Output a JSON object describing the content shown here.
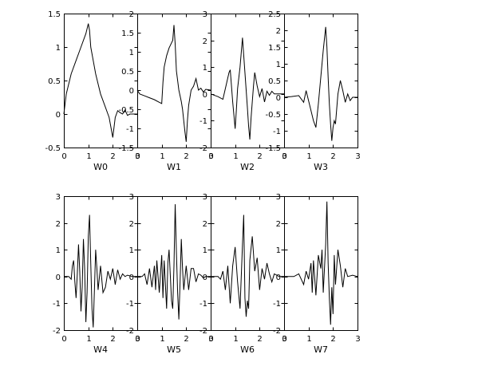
{
  "figure": {
    "background": "#ffffff",
    "line_color": "#000000"
  },
  "chart_data": [
    {
      "type": "line",
      "xlabel": "W0",
      "xlim": [
        0,
        3
      ],
      "ylim": [
        -0.5,
        1.5
      ],
      "xticks": [
        0,
        1,
        2,
        3
      ],
      "yticks": [
        -0.5,
        0,
        0.5,
        1,
        1.5
      ],
      "ytick_labels": [
        "-0.5",
        "0",
        "0.5",
        "1",
        "1.5"
      ],
      "grid": false,
      "series": [
        {
          "x": [
            0,
            0.05,
            0.1,
            0.2,
            0.3,
            0.5,
            0.7,
            0.9,
            1.0,
            1.05,
            1.1,
            1.2,
            1.3,
            1.4,
            1.5,
            1.6,
            1.7,
            1.8,
            1.85,
            1.9,
            1.95,
            2.0,
            2.05,
            2.1,
            2.2,
            2.3,
            2.4,
            2.5,
            2.6,
            2.7,
            3.0
          ],
          "y": [
            0,
            0.15,
            0.3,
            0.45,
            0.6,
            0.8,
            1.0,
            1.2,
            1.35,
            1.25,
            1.0,
            0.8,
            0.6,
            0.45,
            0.3,
            0.2,
            0.1,
            0.0,
            -0.05,
            -0.15,
            -0.25,
            -0.35,
            -0.2,
            -0.05,
            0.05,
            0.02,
            0.0,
            0.06,
            -0.02,
            0.0,
            0.0
          ]
        }
      ]
    },
    {
      "type": "line",
      "xlabel": "W1",
      "xlim": [
        0,
        3
      ],
      "ylim": [
        -1.5,
        2
      ],
      "xticks": [
        0,
        1,
        2,
        3
      ],
      "yticks": [
        -1.5,
        -1,
        -0.5,
        0,
        0.5,
        1,
        1.5,
        2
      ],
      "ytick_labels": [
        "-1.5",
        "-1",
        "-0.5",
        "0",
        "0.5",
        "1",
        "1.5",
        "2"
      ],
      "grid": false,
      "series": [
        {
          "x": [
            0,
            0.1,
            0.3,
            0.5,
            0.7,
            0.9,
            1.0,
            1.05,
            1.1,
            1.2,
            1.3,
            1.45,
            1.5,
            1.55,
            1.6,
            1.7,
            1.8,
            1.85,
            1.9,
            1.95,
            2.0,
            2.05,
            2.1,
            2.2,
            2.3,
            2.4,
            2.5,
            2.6,
            2.7,
            2.8,
            3.0
          ],
          "y": [
            0,
            -0.1,
            -0.15,
            -0.2,
            -0.25,
            -0.32,
            -0.35,
            0.2,
            0.6,
            0.9,
            1.1,
            1.3,
            1.7,
            1.2,
            0.5,
            0.0,
            -0.3,
            -0.5,
            -0.8,
            -1.1,
            -1.35,
            -0.8,
            -0.4,
            0.0,
            0.1,
            0.3,
            0.0,
            0.05,
            -0.05,
            0.02,
            0.0
          ]
        }
      ]
    },
    {
      "type": "line",
      "xlabel": "W2",
      "xlim": [
        0,
        3
      ],
      "ylim": [
        -2,
        3
      ],
      "xticks": [
        0,
        1,
        2,
        3
      ],
      "yticks": [
        -2,
        -1,
        0,
        1,
        2,
        3
      ],
      "ytick_labels": [
        "-2",
        "-1",
        "0",
        "1",
        "2",
        "3"
      ],
      "grid": false,
      "series": [
        {
          "x": [
            0,
            0.3,
            0.5,
            0.6,
            0.7,
            0.75,
            0.8,
            0.9,
            1.0,
            1.05,
            1.1,
            1.2,
            1.3,
            1.4,
            1.5,
            1.55,
            1.6,
            1.65,
            1.7,
            1.75,
            1.8,
            1.9,
            2.0,
            2.1,
            2.2,
            2.3,
            2.4,
            2.5,
            2.6,
            2.7,
            3.0
          ],
          "y": [
            0,
            -0.1,
            -0.2,
            0.2,
            0.6,
            0.8,
            0.9,
            -0.3,
            -1.3,
            -0.6,
            0.2,
            1.0,
            2.1,
            0.8,
            -0.5,
            -1.2,
            -1.7,
            -0.9,
            -0.3,
            0.3,
            0.8,
            0.3,
            -0.1,
            0.2,
            -0.3,
            0.1,
            -0.05,
            0.1,
            0.0,
            0.0,
            0.0
          ]
        }
      ]
    },
    {
      "type": "line",
      "xlabel": "W3",
      "xlim": [
        0,
        3
      ],
      "ylim": [
        -1.5,
        2.5
      ],
      "xticks": [
        0,
        1,
        2,
        3
      ],
      "yticks": [
        -1.5,
        -1,
        -0.5,
        0,
        0.5,
        1,
        1.5,
        2,
        2.5
      ],
      "ytick_labels": [
        "-1.5",
        "-1",
        "-0.5",
        "0",
        "0.5",
        "1",
        "1.5",
        "2",
        "2.5"
      ],
      "grid": false,
      "series": [
        {
          "x": [
            0,
            0.3,
            0.6,
            0.8,
            0.9,
            1.0,
            1.1,
            1.2,
            1.3,
            1.4,
            1.5,
            1.6,
            1.7,
            1.75,
            1.8,
            1.85,
            1.9,
            1.95,
            2.0,
            2.05,
            2.1,
            2.2,
            2.3,
            2.4,
            2.5,
            2.6,
            2.7,
            2.8,
            3.0
          ],
          "y": [
            0,
            0.02,
            0.05,
            -0.15,
            0.2,
            -0.1,
            -0.4,
            -0.7,
            -0.9,
            -0.2,
            0.6,
            1.4,
            2.1,
            1.5,
            0.6,
            -0.2,
            -0.8,
            -1.3,
            -0.9,
            -0.7,
            -0.8,
            0.1,
            0.5,
            0.2,
            -0.15,
            0.1,
            -0.1,
            0.0,
            0.0
          ]
        }
      ]
    },
    {
      "type": "line",
      "xlabel": "W4",
      "xlim": [
        0,
        3
      ],
      "ylim": [
        -2,
        3
      ],
      "xticks": [
        0,
        1,
        2,
        3
      ],
      "yticks": [
        -2,
        -1,
        0,
        1,
        2,
        3
      ],
      "ytick_labels": [
        "-2",
        "-1",
        "0",
        "1",
        "2",
        "3"
      ],
      "grid": false,
      "series": [
        {
          "x": [
            0,
            0.2,
            0.3,
            0.35,
            0.4,
            0.45,
            0.5,
            0.55,
            0.6,
            0.65,
            0.7,
            0.75,
            0.8,
            0.85,
            0.9,
            0.95,
            1.0,
            1.05,
            1.1,
            1.15,
            1.2,
            1.25,
            1.3,
            1.35,
            1.4,
            1.5,
            1.6,
            1.7,
            1.8,
            1.9,
            2.0,
            2.1,
            2.2,
            2.3,
            2.4,
            2.5,
            2.6,
            2.8,
            3.0
          ],
          "y": [
            0,
            0,
            -0.1,
            0.4,
            0.6,
            -0.2,
            -0.8,
            0.1,
            1.2,
            0.2,
            -1.3,
            -0.4,
            1.4,
            0.3,
            -1.7,
            -0.6,
            1.5,
            2.3,
            0.5,
            -1.2,
            -1.9,
            -0.5,
            1.0,
            0.3,
            -0.5,
            0.4,
            -0.6,
            -0.4,
            0.2,
            -0.1,
            0.3,
            -0.3,
            0.25,
            -0.1,
            0.1,
            0.0,
            0.05,
            0.0,
            0.0
          ]
        }
      ]
    },
    {
      "type": "line",
      "xlabel": "W5",
      "xlim": [
        0,
        3
      ],
      "ylim": [
        -2,
        3
      ],
      "xticks": [
        0,
        1,
        2,
        3
      ],
      "yticks": [
        -2,
        -1,
        0,
        1,
        2,
        3
      ],
      "ytick_labels": [
        "-2",
        "-1",
        "0",
        "1",
        "2",
        "3"
      ],
      "grid": false,
      "series": [
        {
          "x": [
            0,
            0.2,
            0.3,
            0.4,
            0.5,
            0.6,
            0.7,
            0.75,
            0.8,
            0.9,
            1.0,
            1.05,
            1.1,
            1.2,
            1.25,
            1.3,
            1.4,
            1.45,
            1.5,
            1.55,
            1.6,
            1.65,
            1.7,
            1.75,
            1.8,
            1.85,
            1.9,
            2.0,
            2.1,
            2.2,
            2.3,
            2.4,
            2.5,
            2.6,
            2.7,
            2.8,
            3.0
          ],
          "y": [
            0,
            0,
            0.1,
            -0.3,
            0.3,
            -0.4,
            0.4,
            -0.5,
            0.6,
            -0.6,
            0.8,
            -0.8,
            0.6,
            -1.2,
            0.5,
            1.0,
            -0.9,
            -1.2,
            0.4,
            2.7,
            0.9,
            -0.6,
            -1.6,
            -0.2,
            1.4,
            0.3,
            -0.5,
            0.4,
            -0.5,
            0.3,
            0.3,
            -0.2,
            0.1,
            0.05,
            -0.05,
            0.0,
            0.0
          ]
        }
      ]
    },
    {
      "type": "line",
      "xlabel": "W6",
      "xlim": [
        0,
        3
      ],
      "ylim": [
        -2,
        3
      ],
      "xticks": [
        0,
        1,
        2,
        3
      ],
      "yticks": [
        -2,
        -1,
        0,
        1,
        2,
        3
      ],
      "ytick_labels": [
        "-2",
        "-1",
        "0",
        "1",
        "2",
        "3"
      ],
      "grid": false,
      "series": [
        {
          "x": [
            0,
            0.3,
            0.4,
            0.5,
            0.6,
            0.7,
            0.8,
            0.9,
            1.0,
            1.1,
            1.2,
            1.3,
            1.35,
            1.4,
            1.45,
            1.5,
            1.55,
            1.6,
            1.7,
            1.8,
            1.9,
            2.0,
            2.1,
            2.2,
            2.3,
            2.4,
            2.5,
            2.6,
            2.8,
            3.0
          ],
          "y": [
            0,
            0,
            -0.1,
            0.2,
            -0.5,
            0.4,
            -1.0,
            0.4,
            1.1,
            -0.2,
            -1.2,
            1.2,
            2.3,
            -0.8,
            -1.5,
            -0.9,
            -1.2,
            0.6,
            1.5,
            0.2,
            0.7,
            -0.5,
            0.3,
            -0.1,
            0.5,
            0.1,
            -0.2,
            0.1,
            0.0,
            0.0
          ]
        }
      ]
    },
    {
      "type": "line",
      "xlabel": "W7",
      "xlim": [
        0,
        3
      ],
      "ylim": [
        -2,
        3
      ],
      "xticks": [
        0,
        1,
        2,
        3
      ],
      "yticks": [
        -2,
        -1,
        0,
        1,
        2,
        3
      ],
      "ytick_labels": [
        "-2",
        "-1",
        "0",
        "1",
        "2",
        "3"
      ],
      "grid": false,
      "series": [
        {
          "x": [
            0,
            0.4,
            0.6,
            0.8,
            0.9,
            1.0,
            1.1,
            1.15,
            1.2,
            1.3,
            1.4,
            1.5,
            1.55,
            1.6,
            1.7,
            1.75,
            1.8,
            1.85,
            1.9,
            1.95,
            2.0,
            2.05,
            2.1,
            2.2,
            2.3,
            2.4,
            2.5,
            2.6,
            2.8,
            3.0
          ],
          "y": [
            0,
            0,
            0.1,
            -0.3,
            0.2,
            -0.1,
            0.5,
            -0.6,
            0.6,
            -0.7,
            0.8,
            0.3,
            1.0,
            -0.6,
            1.2,
            2.8,
            0.5,
            -0.8,
            -1.8,
            -0.4,
            -1.4,
            0.8,
            -0.3,
            1.0,
            0.4,
            -0.4,
            0.3,
            0.0,
            0.05,
            0.0
          ]
        }
      ]
    }
  ]
}
